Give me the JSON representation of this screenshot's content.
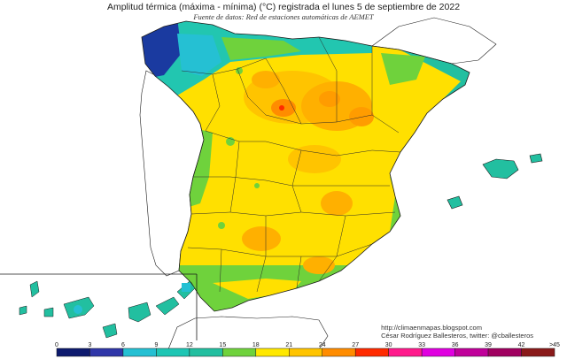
{
  "header": {
    "title": "Amplitud térmica (máxima - mínima) (°C) registrada el lunes 5 de septiembre de 2022",
    "subtitle": "Fuente de datos: Red de estaciones automáticas de AEMET"
  },
  "credits": {
    "url": "http://climaenmapas.blogspot.com",
    "author": "César Rodríguez Ballesteros, twitter: @cballesteros"
  },
  "legend": {
    "ticks": [
      "0",
      "3",
      "6",
      "9",
      "12",
      "15",
      "18",
      "21",
      "24",
      "27",
      "30",
      "33",
      "36",
      "39",
      "42",
      ">45"
    ],
    "colors": [
      "#0d1a6e",
      "#2f36a8",
      "#25c0d3",
      "#1ec6b4",
      "#22bfa0",
      "#6fd23c",
      "#ffe800",
      "#ffc400",
      "#ff8c00",
      "#ff2a00",
      "#ff1a8c",
      "#e000e0",
      "#c0009a",
      "#a00060",
      "#8a1a1a"
    ]
  },
  "palette": {
    "sea": "#ffffff",
    "coast": "#1a1a1a",
    "border": "#2a2a2a"
  }
}
